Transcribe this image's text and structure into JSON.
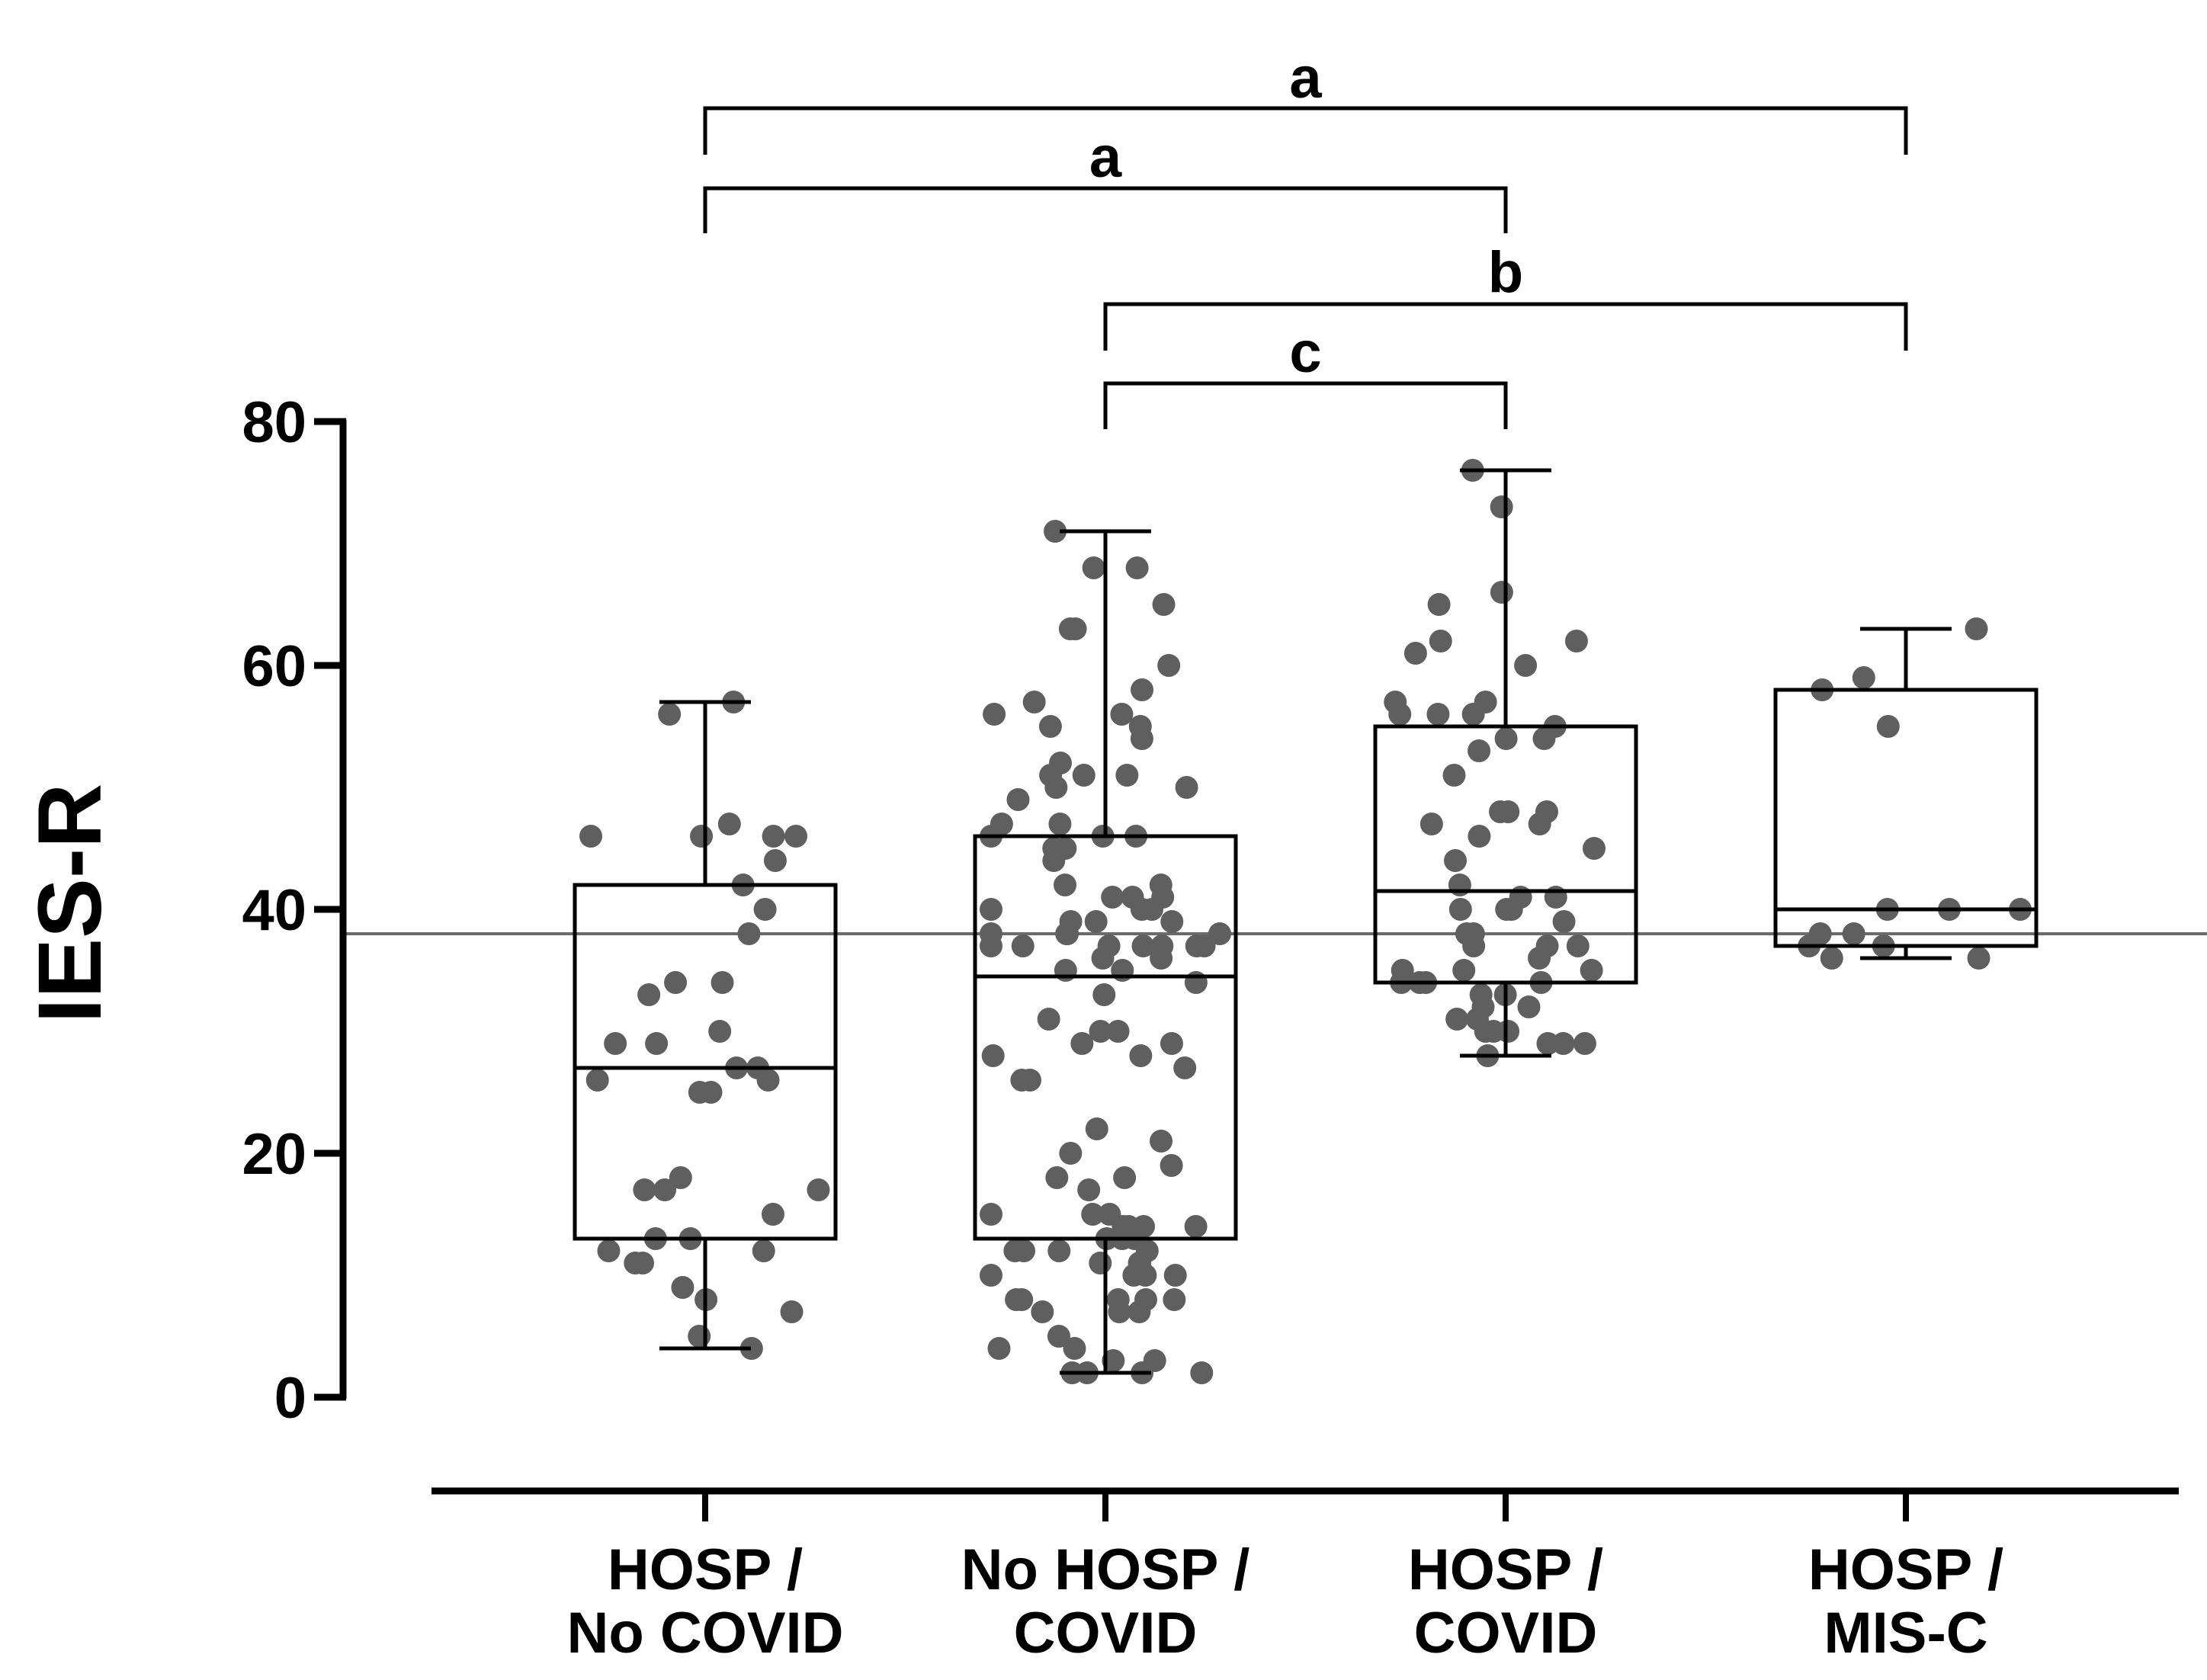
{
  "chart_data": {
    "type": "box",
    "ylabel": "IES-R",
    "ylim": [
      0,
      80
    ],
    "yticks": [
      "0",
      "20",
      "40",
      "60",
      "80"
    ],
    "reference_line": 38,
    "categories": [
      {
        "line1": "HOSP /",
        "line2": "No COVID"
      },
      {
        "line1": "No HOSP /",
        "line2": "COVID"
      },
      {
        "line1": "HOSP /",
        "line2": "COVID"
      },
      {
        "line1": "HOSP /",
        "line2": "MIS-C"
      }
    ],
    "groups": [
      {
        "whisker_min": 4,
        "q1": 13,
        "median": 27,
        "q3": 42,
        "whisker_max": 57,
        "points": [
          57,
          56,
          47,
          46,
          46,
          46,
          46,
          44,
          42,
          40,
          38,
          34,
          34,
          33,
          30,
          29,
          29,
          27,
          27,
          26,
          26,
          25,
          25,
          18,
          17,
          17,
          17,
          15,
          13,
          13,
          12,
          12,
          11,
          11,
          9,
          8,
          7,
          5,
          4
        ]
      },
      {
        "whisker_min": 2,
        "q1": 13,
        "median": 34.5,
        "q3": 46,
        "whisker_max": 71,
        "points": [
          71,
          68,
          68,
          65,
          63,
          63,
          60,
          58,
          57,
          56,
          56,
          55,
          55,
          54,
          52,
          51,
          51,
          51,
          50,
          50,
          49,
          47,
          47,
          46,
          46,
          46,
          45,
          45,
          44,
          42,
          42,
          41,
          41,
          41,
          40,
          40,
          40,
          39,
          39,
          39,
          38,
          38,
          38,
          38,
          37,
          37,
          37,
          37,
          37,
          37,
          37,
          36,
          36,
          35,
          35,
          34,
          33,
          31,
          30,
          30,
          29,
          29,
          28,
          28,
          27,
          26,
          26,
          22,
          21,
          20,
          19,
          18,
          18,
          17,
          15,
          15,
          15,
          14,
          14,
          14,
          14,
          13,
          13,
          13,
          12,
          12,
          12,
          12,
          11,
          11,
          11,
          10,
          10,
          10,
          10,
          8,
          8,
          8,
          8,
          8,
          7,
          7,
          7,
          5,
          4,
          4,
          3,
          3,
          2,
          2,
          2,
          2
        ]
      },
      {
        "whisker_min": 28,
        "q1": 34,
        "median": 41.5,
        "q3": 55,
        "whisker_max": 76,
        "points": [
          76,
          73,
          66,
          65,
          62,
          62,
          61,
          60,
          57,
          57,
          56,
          56,
          56,
          55,
          54,
          54,
          53,
          51,
          48,
          48,
          48,
          47,
          47,
          46,
          45,
          44,
          42,
          41,
          41,
          40,
          40,
          40,
          39,
          38,
          38,
          37,
          37,
          37,
          36,
          35,
          35,
          35,
          34,
          34,
          34,
          34,
          33,
          33,
          32,
          32,
          31,
          31,
          30,
          30,
          30,
          29,
          29,
          29,
          28
        ]
      },
      {
        "whisker_min": 36,
        "q1": 37,
        "median": 40,
        "q3": 58,
        "whisker_max": 63,
        "points": [
          63,
          59,
          58,
          55,
          40,
          40,
          40,
          38,
          38,
          37,
          37,
          36,
          36
        ]
      }
    ],
    "significance": [
      {
        "label": "a",
        "from": 0,
        "to": 3
      },
      {
        "label": "a",
        "from": 0,
        "to": 2
      },
      {
        "label": "b",
        "from": 1,
        "to": 3
      },
      {
        "label": "c",
        "from": 1,
        "to": 2
      }
    ],
    "colors": {
      "points": "#5f5f5f",
      "lines": "#000000",
      "reference": "#6b6b6b"
    }
  }
}
